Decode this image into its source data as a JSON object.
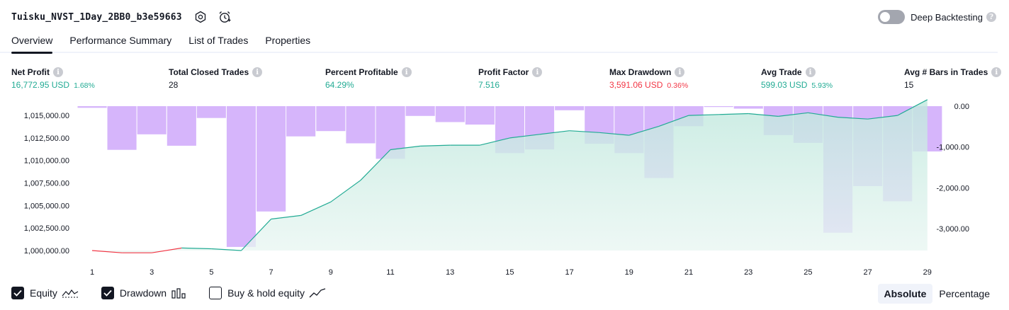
{
  "header": {
    "title": "Tuisku_NVST_1Day_2BB0_b3e59663",
    "deep_backtesting_label": "Deep Backtesting"
  },
  "tabs": [
    {
      "label": "Overview",
      "active": true
    },
    {
      "label": "Performance Summary",
      "active": false
    },
    {
      "label": "List of Trades",
      "active": false
    },
    {
      "label": "Properties",
      "active": false
    }
  ],
  "metrics": [
    {
      "label": "Net Profit",
      "value": "16,772.95 USD",
      "pct": "1.68%",
      "color": "#22ab94"
    },
    {
      "label": "Total Closed Trades",
      "value": "28",
      "pct": "",
      "color": "#131722"
    },
    {
      "label": "Percent Profitable",
      "value": "64.29%",
      "pct": "",
      "color": "#22ab94"
    },
    {
      "label": "Profit Factor",
      "value": "7.516",
      "pct": "",
      "color": "#22ab94"
    },
    {
      "label": "Max Drawdown",
      "value": "3,591.06 USD",
      "pct": "0.36%",
      "color": "#f23645"
    },
    {
      "label": "Avg Trade",
      "value": "599.03 USD",
      "pct": "5.93%",
      "color": "#22ab94"
    },
    {
      "label": "Avg # Bars in Trades",
      "value": "15",
      "pct": "",
      "color": "#131722"
    }
  ],
  "chart_data": {
    "type": "line",
    "x_ticks": [
      "1",
      "3",
      "5",
      "7",
      "9",
      "11",
      "13",
      "15",
      "17",
      "19",
      "21",
      "23",
      "25",
      "27",
      "29"
    ],
    "left_axis_ticks": [
      "1,015,000.00",
      "1,012,500.00",
      "1,010,000.00",
      "1,007,500.00",
      "1,005,000.00",
      "1,002,500.00",
      "1,000,000.00"
    ],
    "right_axis_ticks": [
      "0.00",
      "-1,000.00",
      "-2,000.00",
      "-3,000.00"
    ],
    "left_ylim": [
      1000000,
      1016500
    ],
    "right_ylim": [
      -3400,
      0
    ],
    "equity": [
      1000000,
      999750,
      999750,
      1000280,
      1000200,
      1000000,
      1003500,
      1003900,
      1005400,
      1007800,
      1011200,
      1011600,
      1011700,
      1011700,
      1012500,
      1012900,
      1013300,
      1013100,
      1012800,
      1013800,
      1015000,
      1015100,
      1015200,
      1014900,
      1015300,
      1014800,
      1014600,
      1015000,
      1016750
    ],
    "drawdown": [
      -40,
      -1070,
      -690,
      -970,
      -290,
      -3450,
      -2580,
      -740,
      -610,
      -910,
      -1290,
      -240,
      -390,
      -450,
      -1150,
      -1060,
      -100,
      -920,
      -1150,
      -1760,
      -490,
      -20,
      -60,
      -710,
      -900,
      -3100,
      -1960,
      -2330,
      -1110
    ],
    "series": [
      {
        "name": "Equity",
        "color_up": "#22ab94",
        "color_down": "#f23645",
        "fill": "#d6f0ea"
      },
      {
        "name": "Drawdown",
        "color": "#cfa8fa"
      }
    ]
  },
  "legend": {
    "equity_label": "Equity",
    "drawdown_label": "Drawdown",
    "buy_hold_label": "Buy & hold equity"
  },
  "view_toggle": {
    "absolute_label": "Absolute",
    "percentage_label": "Percentage"
  }
}
